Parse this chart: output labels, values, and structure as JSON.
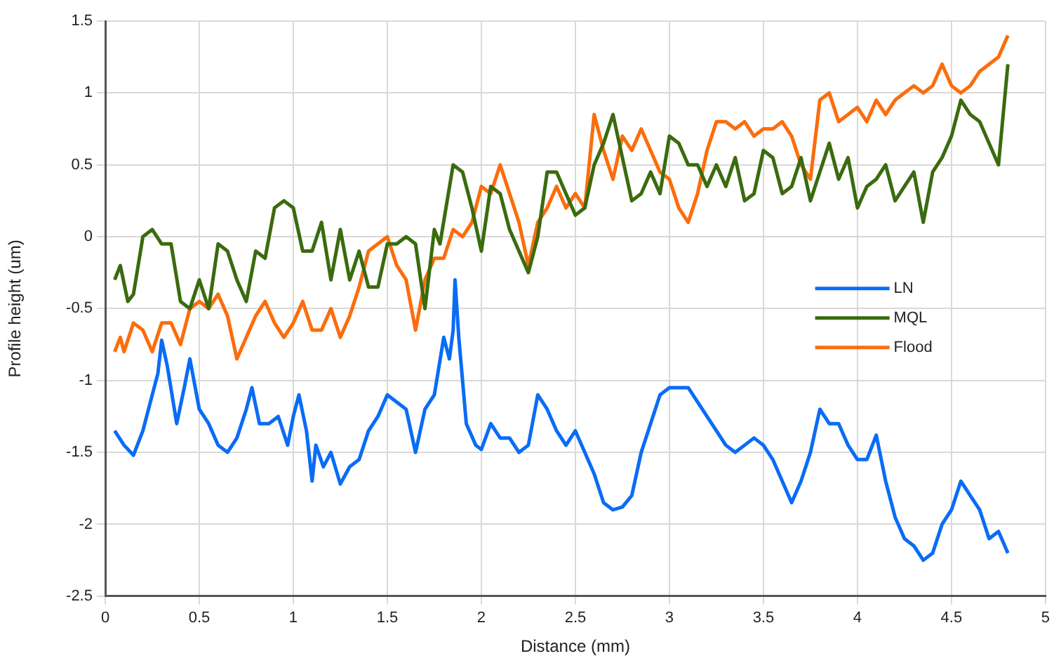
{
  "chart_data": {
    "type": "line",
    "xlabel": "Distance (mm)",
    "ylabel": "Profile height (um)",
    "xlim": [
      0,
      5
    ],
    "xticks": [
      0,
      0.5,
      1,
      1.5,
      2,
      2.5,
      3,
      3.5,
      4,
      4.5,
      5
    ],
    "ylim": [
      -2.5,
      1.5
    ],
    "yticks": [
      -2.5,
      -2,
      -1.5,
      -1,
      -0.5,
      0,
      0.5,
      1,
      1.5
    ],
    "grid": true,
    "legend": "right",
    "marker": "none",
    "line_style": "solid",
    "series": [
      {
        "name": "LN",
        "color": "#0a6cf5",
        "x": [
          0.05,
          0.1,
          0.15,
          0.2,
          0.25,
          0.28,
          0.3,
          0.33,
          0.38,
          0.42,
          0.45,
          0.5,
          0.55,
          0.6,
          0.65,
          0.7,
          0.75,
          0.78,
          0.82,
          0.87,
          0.92,
          0.97,
          1.0,
          1.03,
          1.07,
          1.1,
          1.12,
          1.16,
          1.2,
          1.25,
          1.3,
          1.35,
          1.4,
          1.45,
          1.5,
          1.55,
          1.6,
          1.65,
          1.7,
          1.75,
          1.8,
          1.83,
          1.85,
          1.86,
          1.88,
          1.92,
          1.97,
          2.0,
          2.05,
          2.1,
          2.15,
          2.2,
          2.25,
          2.3,
          2.35,
          2.4,
          2.45,
          2.5,
          2.55,
          2.6,
          2.65,
          2.7,
          2.75,
          2.8,
          2.85,
          2.9,
          2.95,
          3.0,
          3.05,
          3.1,
          3.15,
          3.2,
          3.25,
          3.3,
          3.35,
          3.4,
          3.45,
          3.5,
          3.55,
          3.6,
          3.65,
          3.7,
          3.75,
          3.8,
          3.85,
          3.9,
          3.95,
          4.0,
          4.05,
          4.1,
          4.15,
          4.2,
          4.25,
          4.3,
          4.35,
          4.4,
          4.45,
          4.5,
          4.55,
          4.6,
          4.65,
          4.7,
          4.75,
          4.8
        ],
        "values": [
          -1.35,
          -1.45,
          -1.52,
          -1.35,
          -1.1,
          -0.95,
          -0.72,
          -0.9,
          -1.3,
          -1.05,
          -0.85,
          -1.2,
          -1.3,
          -1.45,
          -1.5,
          -1.4,
          -1.2,
          -1.05,
          -1.3,
          -1.3,
          -1.25,
          -1.45,
          -1.25,
          -1.1,
          -1.35,
          -1.7,
          -1.45,
          -1.6,
          -1.5,
          -1.72,
          -1.6,
          -1.55,
          -1.35,
          -1.25,
          -1.1,
          -1.15,
          -1.2,
          -1.5,
          -1.2,
          -1.1,
          -0.7,
          -0.85,
          -0.65,
          -0.3,
          -0.7,
          -1.3,
          -1.45,
          -1.48,
          -1.3,
          -1.4,
          -1.4,
          -1.5,
          -1.45,
          -1.1,
          -1.2,
          -1.35,
          -1.45,
          -1.35,
          -1.5,
          -1.65,
          -1.85,
          -1.9,
          -1.88,
          -1.8,
          -1.5,
          -1.3,
          -1.1,
          -1.05,
          -1.05,
          -1.05,
          -1.15,
          -1.25,
          -1.35,
          -1.45,
          -1.5,
          -1.45,
          -1.4,
          -1.45,
          -1.55,
          -1.7,
          -1.85,
          -1.7,
          -1.5,
          -1.2,
          -1.3,
          -1.3,
          -1.45,
          -1.55,
          -1.55,
          -1.38,
          -1.7,
          -1.95,
          -2.1,
          -2.15,
          -2.25,
          -2.2,
          -2.0,
          -1.9,
          -1.7,
          -1.8,
          -1.9,
          -2.1,
          -2.05,
          -2.2
        ]
      },
      {
        "name": "MQL",
        "color": "#3a6b0e",
        "x": [
          0.05,
          0.08,
          0.12,
          0.15,
          0.2,
          0.25,
          0.3,
          0.35,
          0.4,
          0.45,
          0.5,
          0.55,
          0.6,
          0.65,
          0.7,
          0.75,
          0.8,
          0.85,
          0.9,
          0.95,
          1.0,
          1.05,
          1.1,
          1.15,
          1.2,
          1.25,
          1.3,
          1.35,
          1.4,
          1.45,
          1.5,
          1.55,
          1.6,
          1.65,
          1.7,
          1.75,
          1.78,
          1.85,
          1.9,
          1.95,
          2.0,
          2.05,
          2.1,
          2.15,
          2.2,
          2.25,
          2.3,
          2.35,
          2.4,
          2.45,
          2.5,
          2.55,
          2.6,
          2.65,
          2.7,
          2.75,
          2.8,
          2.85,
          2.9,
          2.95,
          3.0,
          3.05,
          3.1,
          3.15,
          3.2,
          3.25,
          3.3,
          3.35,
          3.4,
          3.45,
          3.5,
          3.55,
          3.6,
          3.65,
          3.7,
          3.75,
          3.8,
          3.85,
          3.9,
          3.95,
          4.0,
          4.05,
          4.1,
          4.15,
          4.2,
          4.25,
          4.3,
          4.35,
          4.4,
          4.45,
          4.5,
          4.55,
          4.6,
          4.65,
          4.7,
          4.75,
          4.8
        ],
        "values": [
          -0.3,
          -0.2,
          -0.45,
          -0.4,
          0.0,
          0.05,
          -0.05,
          -0.05,
          -0.45,
          -0.5,
          -0.3,
          -0.5,
          -0.05,
          -0.1,
          -0.3,
          -0.45,
          -0.1,
          -0.15,
          0.2,
          0.25,
          0.2,
          -0.1,
          -0.1,
          0.1,
          -0.3,
          0.05,
          -0.3,
          -0.1,
          -0.35,
          -0.35,
          -0.05,
          -0.05,
          0.0,
          -0.05,
          -0.5,
          0.05,
          -0.05,
          0.5,
          0.45,
          0.2,
          -0.1,
          0.35,
          0.3,
          0.05,
          -0.1,
          -0.25,
          0.0,
          0.45,
          0.45,
          0.3,
          0.15,
          0.2,
          0.5,
          0.65,
          0.85,
          0.55,
          0.25,
          0.3,
          0.45,
          0.3,
          0.7,
          0.65,
          0.5,
          0.5,
          0.35,
          0.5,
          0.35,
          0.55,
          0.25,
          0.3,
          0.6,
          0.55,
          0.3,
          0.35,
          0.55,
          0.25,
          0.45,
          0.65,
          0.4,
          0.55,
          0.2,
          0.35,
          0.4,
          0.5,
          0.25,
          0.35,
          0.45,
          0.1,
          0.45,
          0.55,
          0.7,
          0.95,
          0.85,
          0.8,
          0.65,
          0.5,
          1.2
        ]
      },
      {
        "name": "Flood",
        "color": "#fb6d0c",
        "x": [
          0.05,
          0.08,
          0.1,
          0.15,
          0.2,
          0.25,
          0.3,
          0.35,
          0.4,
          0.45,
          0.5,
          0.55,
          0.6,
          0.65,
          0.7,
          0.75,
          0.8,
          0.85,
          0.9,
          0.95,
          1.0,
          1.05,
          1.1,
          1.15,
          1.2,
          1.25,
          1.3,
          1.35,
          1.4,
          1.45,
          1.5,
          1.55,
          1.6,
          1.65,
          1.7,
          1.75,
          1.8,
          1.85,
          1.9,
          1.95,
          2.0,
          2.05,
          2.1,
          2.15,
          2.2,
          2.25,
          2.3,
          2.35,
          2.4,
          2.45,
          2.5,
          2.55,
          2.6,
          2.65,
          2.7,
          2.75,
          2.8,
          2.85,
          2.9,
          2.95,
          3.0,
          3.05,
          3.1,
          3.15,
          3.2,
          3.25,
          3.3,
          3.35,
          3.4,
          3.45,
          3.5,
          3.55,
          3.6,
          3.65,
          3.7,
          3.75,
          3.8,
          3.85,
          3.9,
          3.95,
          4.0,
          4.05,
          4.1,
          4.15,
          4.2,
          4.25,
          4.3,
          4.35,
          4.4,
          4.45,
          4.5,
          4.55,
          4.6,
          4.65,
          4.7,
          4.75,
          4.8
        ],
        "values": [
          -0.8,
          -0.7,
          -0.8,
          -0.6,
          -0.65,
          -0.8,
          -0.6,
          -0.6,
          -0.75,
          -0.5,
          -0.45,
          -0.5,
          -0.4,
          -0.55,
          -0.85,
          -0.7,
          -0.55,
          -0.45,
          -0.6,
          -0.7,
          -0.6,
          -0.45,
          -0.65,
          -0.65,
          -0.5,
          -0.7,
          -0.55,
          -0.35,
          -0.1,
          -0.05,
          0.0,
          -0.2,
          -0.3,
          -0.65,
          -0.3,
          -0.15,
          -0.15,
          0.05,
          0.0,
          0.1,
          0.35,
          0.3,
          0.5,
          0.3,
          0.1,
          -0.2,
          0.1,
          0.2,
          0.35,
          0.2,
          0.3,
          0.2,
          0.85,
          0.6,
          0.4,
          0.7,
          0.6,
          0.75,
          0.6,
          0.45,
          0.4,
          0.2,
          0.1,
          0.3,
          0.6,
          0.8,
          0.8,
          0.75,
          0.8,
          0.7,
          0.75,
          0.75,
          0.8,
          0.7,
          0.5,
          0.4,
          0.95,
          1.0,
          0.8,
          0.85,
          0.9,
          0.8,
          0.95,
          0.85,
          0.95,
          1.0,
          1.05,
          1.0,
          1.05,
          1.2,
          1.05,
          1.0,
          1.05,
          1.15,
          1.2,
          1.25,
          1.4
        ]
      }
    ]
  }
}
